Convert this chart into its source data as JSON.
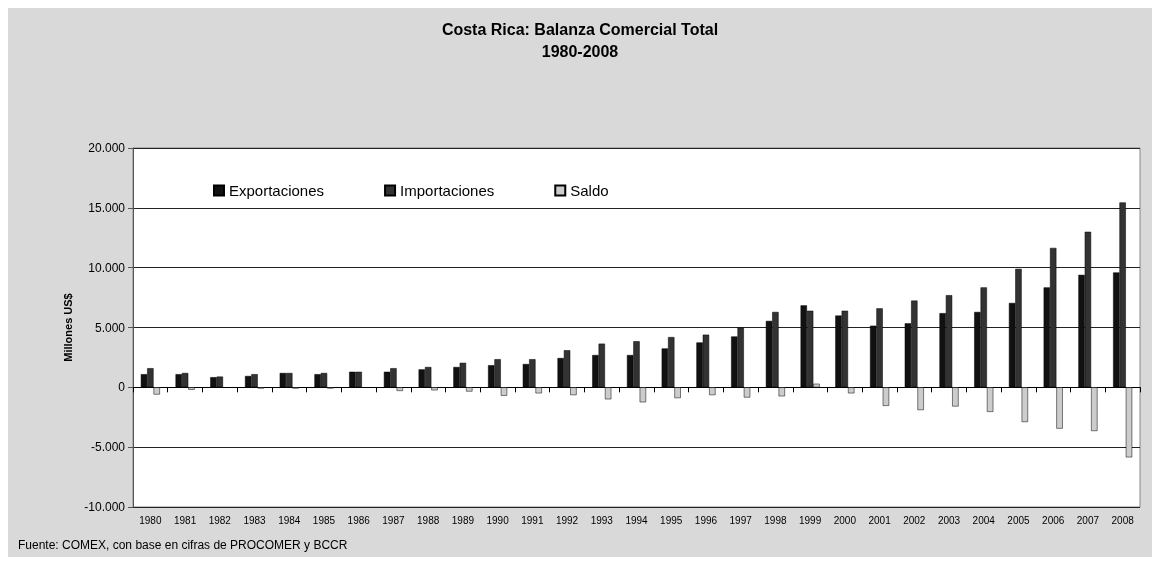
{
  "chart_data": {
    "type": "bar",
    "title": "Costa Rica: Balanza Comercial Total",
    "subtitle": "1980-2008",
    "ylabel": "Millones US$",
    "annotations": [
      "Fuente: COMEX, con base en cifras de PROCOMER y BCCR"
    ],
    "categories": [
      "1980",
      "1981",
      "1982",
      "1983",
      "1984",
      "1985",
      "1986",
      "1987",
      "1988",
      "1989",
      "1990",
      "1991",
      "1992",
      "1993",
      "1994",
      "1995",
      "1996",
      "1997",
      "1998",
      "1999",
      "2000",
      "2001",
      "2002",
      "2003",
      "2004",
      "2005",
      "2006",
      "2007",
      "2008"
    ],
    "series": [
      {
        "name": "Exportaciones",
        "color": "#111111",
        "values": [
          1100,
          1100,
          850,
          950,
          1200,
          1100,
          1300,
          1300,
          1500,
          1700,
          1850,
          1950,
          2450,
          2700,
          2700,
          3250,
          3750,
          4250,
          5550,
          6850,
          6000,
          5150,
          5350,
          6200,
          6300,
          7050,
          8350,
          9400,
          9600
        ]
      },
      {
        "name": "Importaciones",
        "color": "#333333",
        "values": [
          1600,
          1200,
          900,
          1100,
          1200,
          1200,
          1300,
          1600,
          1700,
          2050,
          2350,
          2350,
          3100,
          3650,
          3850,
          4200,
          4400,
          5000,
          6300,
          6400,
          6400,
          6600,
          7250,
          7700,
          8350,
          9900,
          11650,
          13000,
          15450
        ]
      },
      {
        "name": "Saldo",
        "color": "#cccccc",
        "values": [
          -600,
          -200,
          null,
          -100,
          -100,
          -100,
          null,
          -300,
          -250,
          -350,
          -700,
          -500,
          -650,
          -1000,
          -1250,
          -900,
          -650,
          -850,
          -750,
          300,
          -500,
          -1550,
          -1900,
          -1600,
          -2050,
          -2900,
          -3450,
          -3650,
          -5850
        ]
      }
    ],
    "ylim": [
      -10000,
      20000
    ],
    "yticks": [
      {
        "value": -10000,
        "label": "-10.000"
      },
      {
        "value": -5000,
        "label": "-5.000"
      },
      {
        "value": 0,
        "label": "0"
      },
      {
        "value": 5000,
        "label": "5.000"
      },
      {
        "value": 10000,
        "label": "10.000"
      },
      {
        "value": 15000,
        "label": "15.000"
      },
      {
        "value": 20000,
        "label": "20.000"
      }
    ],
    "grid": "y",
    "legend": "top left"
  }
}
